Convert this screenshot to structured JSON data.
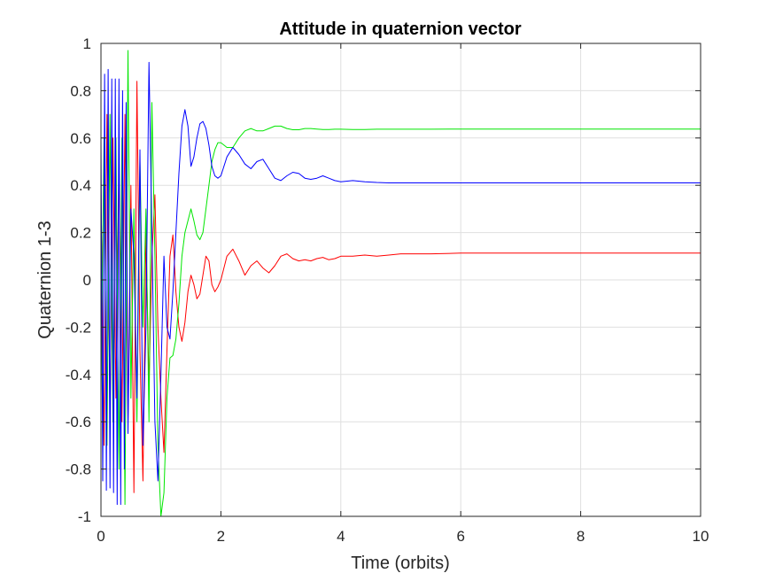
{
  "chart_data": {
    "type": "line",
    "title": "Attitude in quaternion vector",
    "xlabel": "Time (orbits)",
    "ylabel": "Quaternion 1-3",
    "xlim": [
      0,
      10
    ],
    "ylim": [
      -1,
      1
    ],
    "xticks": [
      "0",
      "2",
      "4",
      "6",
      "8",
      "10"
    ],
    "yticks": [
      "1",
      "0.8",
      "0.6",
      "0.4",
      "0.2",
      "0",
      "-0.2",
      "-0.4",
      "-0.6",
      "-0.8",
      "-1"
    ],
    "grid": true,
    "legend": "none",
    "series": [
      {
        "color": "#ff0000",
        "x": [
          0,
          0.05,
          0.1,
          0.15,
          0.2,
          0.25,
          0.3,
          0.35,
          0.4,
          0.45,
          0.5,
          0.55,
          0.6,
          0.65,
          0.7,
          0.75,
          0.8,
          0.85,
          0.9,
          0.95,
          1.0,
          1.05,
          1.1,
          1.15,
          1.2,
          1.25,
          1.3,
          1.35,
          1.4,
          1.45,
          1.5,
          1.55,
          1.6,
          1.65,
          1.7,
          1.75,
          1.8,
          1.85,
          1.9,
          1.95,
          2.0,
          2.1,
          2.2,
          2.3,
          2.4,
          2.5,
          2.6,
          2.7,
          2.8,
          2.9,
          3.0,
          3.1,
          3.2,
          3.3,
          3.4,
          3.5,
          3.6,
          3.7,
          3.8,
          3.9,
          4.0,
          4.2,
          4.4,
          4.6,
          4.8,
          5.0,
          5.5,
          6.0,
          7.0,
          8.0,
          9.0,
          10.0
        ],
        "y": [
          0.4,
          -0.7,
          0.7,
          -0.6,
          0.6,
          -0.5,
          0.5,
          -0.6,
          0.7,
          -0.6,
          0.4,
          -0.9,
          0.84,
          -0.3,
          -0.85,
          0.2,
          -0.45,
          0.1,
          0.36,
          -0.2,
          -0.5,
          -0.73,
          -0.3,
          0.1,
          0.19,
          -0.05,
          -0.2,
          -0.26,
          -0.18,
          -0.05,
          0.02,
          -0.02,
          -0.08,
          -0.06,
          0.02,
          0.1,
          0.08,
          -0.02,
          -0.05,
          -0.03,
          0.0,
          0.1,
          0.13,
          0.08,
          0.02,
          0.06,
          0.08,
          0.05,
          0.03,
          0.06,
          0.1,
          0.11,
          0.09,
          0.08,
          0.085,
          0.08,
          0.09,
          0.095,
          0.085,
          0.09,
          0.1,
          0.1,
          0.105,
          0.1,
          0.105,
          0.11,
          0.11,
          0.113,
          0.113,
          0.113,
          0.113,
          0.113
        ]
      },
      {
        "color": "#00e600",
        "x": [
          0,
          0.05,
          0.1,
          0.15,
          0.2,
          0.25,
          0.3,
          0.35,
          0.4,
          0.45,
          0.5,
          0.55,
          0.6,
          0.65,
          0.7,
          0.75,
          0.8,
          0.85,
          0.9,
          0.95,
          1.0,
          1.05,
          1.1,
          1.15,
          1.2,
          1.25,
          1.3,
          1.35,
          1.4,
          1.45,
          1.5,
          1.55,
          1.6,
          1.65,
          1.7,
          1.75,
          1.8,
          1.85,
          1.9,
          1.95,
          2.0,
          2.1,
          2.2,
          2.3,
          2.4,
          2.5,
          2.6,
          2.7,
          2.8,
          2.9,
          3.0,
          3.1,
          3.2,
          3.3,
          3.4,
          3.5,
          3.6,
          3.7,
          3.8,
          3.9,
          4.0,
          4.2,
          4.4,
          4.6,
          4.8,
          5.0,
          5.5,
          6.0,
          7.0,
          8.0,
          9.0,
          10.0
        ],
        "y": [
          -0.5,
          0.6,
          -0.7,
          0.7,
          -0.6,
          0.6,
          -0.8,
          0.6,
          -0.95,
          0.97,
          -0.5,
          0.3,
          -0.6,
          0.5,
          -0.2,
          0.3,
          -0.6,
          0.75,
          0.1,
          -0.7,
          -1.0,
          -0.9,
          -0.5,
          -0.33,
          -0.32,
          -0.25,
          -0.1,
          0.1,
          0.2,
          0.25,
          0.3,
          0.25,
          0.19,
          0.17,
          0.2,
          0.3,
          0.4,
          0.5,
          0.55,
          0.58,
          0.58,
          0.56,
          0.56,
          0.6,
          0.63,
          0.64,
          0.63,
          0.63,
          0.64,
          0.65,
          0.65,
          0.64,
          0.635,
          0.635,
          0.64,
          0.64,
          0.638,
          0.636,
          0.636,
          0.637,
          0.637,
          0.636,
          0.636,
          0.637,
          0.637,
          0.637,
          0.637,
          0.638,
          0.638,
          0.638,
          0.638,
          0.638
        ]
      },
      {
        "color": "#0000ff",
        "x": [
          0,
          0.03,
          0.06,
          0.09,
          0.12,
          0.15,
          0.18,
          0.21,
          0.24,
          0.27,
          0.3,
          0.33,
          0.36,
          0.39,
          0.42,
          0.45,
          0.5,
          0.55,
          0.6,
          0.65,
          0.7,
          0.75,
          0.8,
          0.85,
          0.9,
          0.95,
          1.0,
          1.05,
          1.1,
          1.15,
          1.2,
          1.25,
          1.3,
          1.35,
          1.4,
          1.45,
          1.5,
          1.55,
          1.6,
          1.65,
          1.7,
          1.75,
          1.8,
          1.85,
          1.9,
          1.95,
          2.0,
          2.1,
          2.2,
          2.3,
          2.4,
          2.5,
          2.6,
          2.7,
          2.8,
          2.9,
          3.0,
          3.1,
          3.2,
          3.3,
          3.4,
          3.5,
          3.6,
          3.7,
          3.8,
          3.9,
          4.0,
          4.2,
          4.4,
          4.6,
          4.8,
          5.0,
          5.5,
          6.0,
          7.0,
          8.0,
          9.0,
          10.0
        ],
        "y": [
          0.6,
          -0.85,
          0.87,
          -0.89,
          0.89,
          -0.88,
          0.85,
          -0.9,
          0.85,
          -0.95,
          0.85,
          -0.95,
          0.8,
          -0.8,
          0.75,
          -0.65,
          0.3,
          0.1,
          -0.5,
          0.55,
          -0.7,
          -0.2,
          0.92,
          0.2,
          -0.6,
          -0.85,
          -0.4,
          0.1,
          -0.2,
          -0.25,
          -0.05,
          0.2,
          0.45,
          0.65,
          0.72,
          0.65,
          0.48,
          0.52,
          0.6,
          0.66,
          0.67,
          0.64,
          0.57,
          0.48,
          0.44,
          0.43,
          0.44,
          0.52,
          0.56,
          0.53,
          0.49,
          0.47,
          0.5,
          0.51,
          0.47,
          0.43,
          0.42,
          0.44,
          0.455,
          0.45,
          0.43,
          0.425,
          0.43,
          0.44,
          0.43,
          0.42,
          0.415,
          0.42,
          0.415,
          0.412,
          0.41,
          0.41,
          0.41,
          0.41,
          0.41,
          0.41,
          0.41,
          0.41
        ]
      }
    ]
  }
}
